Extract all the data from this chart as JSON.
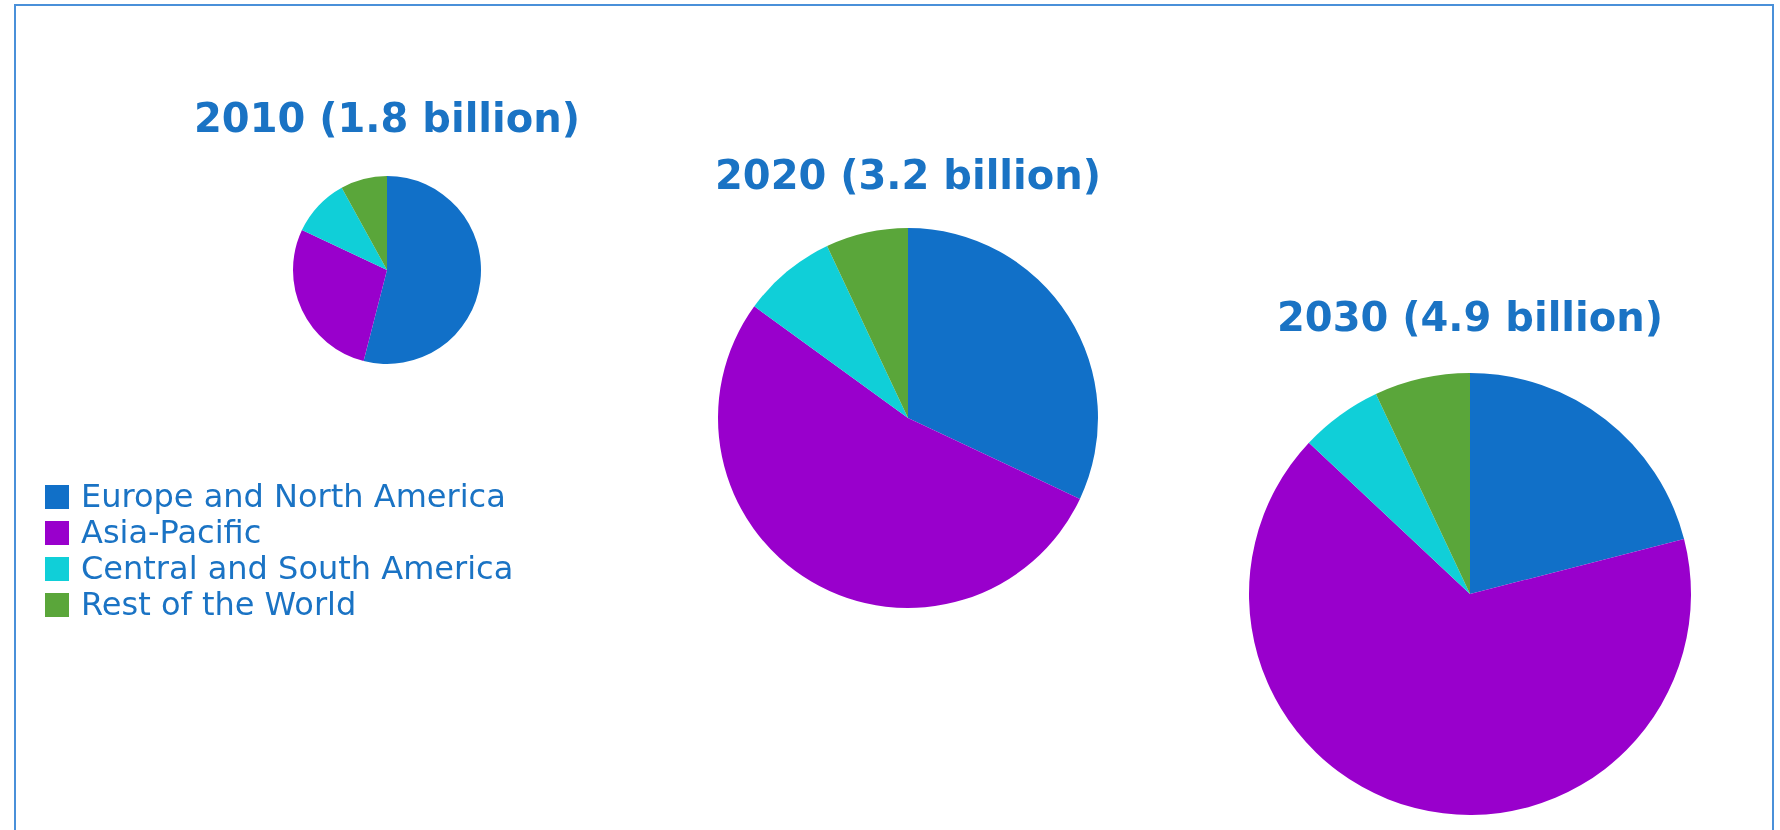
{
  "chart_data": [
    {
      "type": "pie",
      "title": "2010 (1.8 billion)",
      "categories": [
        "Europe and North America",
        "Asia-Pacific",
        "Central and South America",
        "Rest of the World"
      ],
      "values": [
        54,
        28,
        10,
        8
      ],
      "colors": [
        "#1170c8",
        "#9900cc",
        "#10cfd8",
        "#5aa63a"
      ],
      "legend": "bottom"
    },
    {
      "type": "pie",
      "title": "2020 (3.2 billion)",
      "categories": [
        null,
        null,
        null,
        null
      ],
      "values": [
        32,
        53,
        8,
        7
      ],
      "colors": [
        "#1170c8",
        "#9900cc",
        "#10cfd8",
        "#5aa63a"
      ]
    },
    {
      "type": "pie",
      "title": "2030 (4.9 billion)",
      "categories": [
        null,
        null,
        null,
        null
      ],
      "values": [
        21,
        66,
        6,
        7
      ],
      "colors": [
        "#1170c8",
        "#9900cc",
        "#10cfd8",
        "#5aa63a"
      ]
    }
  ]
}
